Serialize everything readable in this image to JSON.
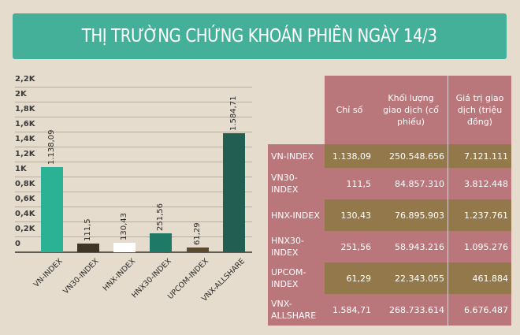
{
  "header": {
    "title": "THỊ TRƯỜNG CHỨNG KHOÁN PHIÊN NGÀY 14/3",
    "banner_color": "#45b09a",
    "background_color": "#e5dccd"
  },
  "chart_data": {
    "type": "bar",
    "title": "",
    "xlabel": "",
    "ylabel": "",
    "ylim": [
      0,
      2200
    ],
    "grid": true,
    "legend": null,
    "categories": [
      "VN-INDEX",
      "VN30-INDEX",
      "HNX-INDEX",
      "HNX30-INDEX",
      "UPCOM-INDEX",
      "VNX-ALLSHARE"
    ],
    "values": [
      1138.09,
      111.5,
      130.43,
      251.56,
      61.29,
      1584.71
    ],
    "value_labels": [
      "1.138,09",
      "111,5",
      "130,43",
      "251,56",
      "61,29",
      "1.584,71"
    ],
    "bar_colors": [
      "#2bb294",
      "#3f3628",
      "#ffffff",
      "#1e7a66",
      "#594a30",
      "#235e52"
    ],
    "yticks": [
      "0",
      "0,2K",
      "0,4K",
      "0,6K",
      "0,8K",
      "1K",
      "1,2K",
      "1,4K",
      "1,6K",
      "1,8K",
      "2K",
      "2,2K"
    ]
  },
  "table": {
    "headers": [
      "",
      "Chỉ số",
      "Khối lượng giao dịch (cổ phiếu)",
      "Giá trị giao dịch (triệu đồng)"
    ],
    "rows": [
      {
        "name": "VN-INDEX",
        "index": "1.138,09",
        "volume": "250.548.656",
        "value": "7.121.111"
      },
      {
        "name": "VN30-INDEX",
        "index": "111,5",
        "volume": "84.857.310",
        "value": "3.812.448"
      },
      {
        "name": "HNX-INDEX",
        "index": "130,43",
        "volume": "76.895.903",
        "value": "1.237.761"
      },
      {
        "name": "HNX30-INDEX",
        "index": "251,56",
        "volume": "58.943.216",
        "value": "1.095.276"
      },
      {
        "name": "UPCOM-INDEX",
        "index": "61,29",
        "volume": "22.343.055",
        "value": "461.884"
      },
      {
        "name": "VNX-ALLSHARE",
        "index": "1.584,71",
        "volume": "268.733.614",
        "value": "6.676.487"
      }
    ],
    "colors": {
      "pink": "#b9777c",
      "olive": "#92784a"
    }
  }
}
